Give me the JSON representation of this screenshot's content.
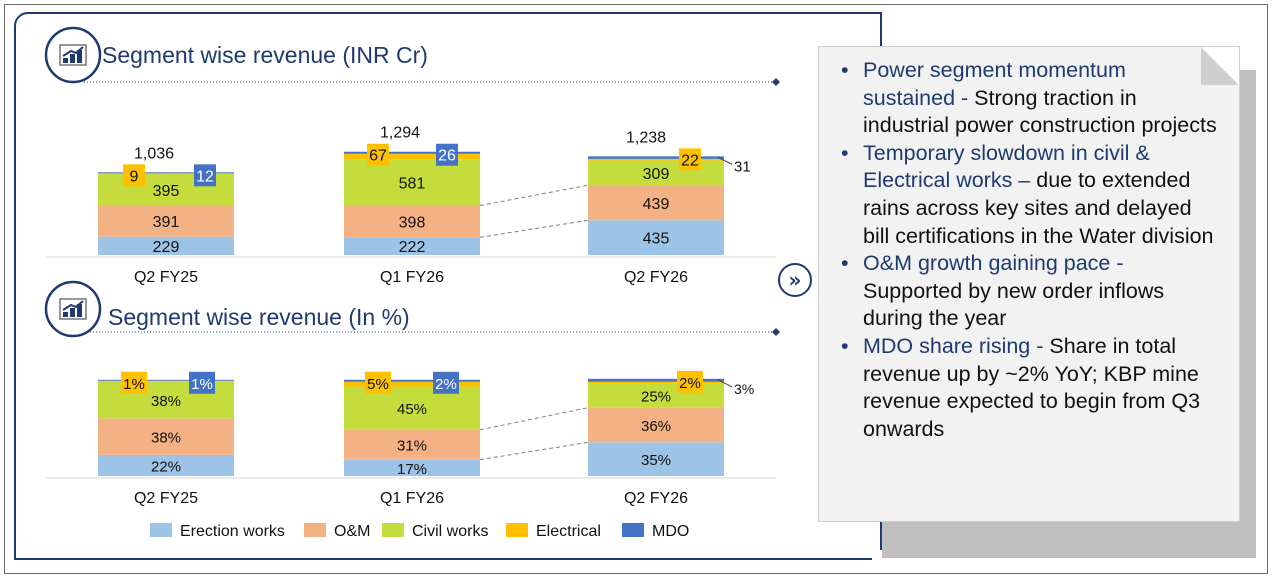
{
  "chart_data": [
    {
      "type": "bar",
      "stacked": true,
      "title": "Segment wise revenue (INR Cr)",
      "categories": [
        "Q2 FY25",
        "Q1 FY26",
        "Q2 FY26"
      ],
      "totals": [
        "1,036",
        "1,294",
        "1,238"
      ],
      "series": [
        {
          "name": "Erection works",
          "values": [
            229,
            222,
            435
          ],
          "labels": [
            "229",
            "222",
            "435"
          ]
        },
        {
          "name": "O&M",
          "values": [
            391,
            398,
            439
          ],
          "labels": [
            "391",
            "398",
            "439"
          ]
        },
        {
          "name": "Civil works",
          "values": [
            395,
            581,
            309
          ],
          "labels": [
            "395",
            "581",
            "309"
          ]
        },
        {
          "name": "Electrical",
          "values": [
            9,
            67,
            22
          ],
          "labels": [
            "9",
            "67",
            "22"
          ]
        },
        {
          "name": "MDO",
          "values": [
            12,
            26,
            31
          ],
          "labels": [
            "12",
            "26",
            "31"
          ]
        }
      ]
    },
    {
      "type": "bar",
      "stacked": true,
      "title": "Segment wise revenue (In %)",
      "categories": [
        "Q2 FY25",
        "Q1 FY26",
        "Q2 FY26"
      ],
      "series": [
        {
          "name": "Erection works",
          "values": [
            22,
            17,
            35
          ],
          "labels": [
            "22%",
            "17%",
            "35%"
          ]
        },
        {
          "name": "O&M",
          "values": [
            38,
            31,
            36
          ],
          "labels": [
            "38%",
            "31%",
            "36%"
          ]
        },
        {
          "name": "Civil works",
          "values": [
            38,
            45,
            25
          ],
          "labels": [
            "38%",
            "45%",
            "25%"
          ]
        },
        {
          "name": "Electrical",
          "values": [
            1,
            5,
            2
          ],
          "labels": [
            "1%",
            "5%",
            "2%"
          ]
        },
        {
          "name": "MDO",
          "values": [
            1,
            2,
            3
          ],
          "labels": [
            "1%",
            "2%",
            "3%"
          ]
        }
      ]
    }
  ],
  "legend": [
    "Erection works",
    "O&M",
    "Civil works",
    "Electrical",
    "MDO"
  ],
  "colors": {
    "Erection works": "#9dc3e6",
    "O&M": "#f4b183",
    "Civil works": "#c5dd3c",
    "Electrical": "#ffc000",
    "MDO": "#4472c4",
    "accent": "#1f3a6e"
  },
  "icons": {
    "chart": "growth-chart-icon",
    "arrow": "double-chevron-right-icon"
  },
  "notes": [
    {
      "head": "Power segment momentum sustained -",
      "body": " Strong traction in industrial power construction projects"
    },
    {
      "head": "Temporary slowdown in civil & Electrical works –",
      "body": " due to extended rains across key sites and delayed bill certifications in the Water division"
    },
    {
      "head": "O&M growth gaining pace -",
      "body": " Supported by new order inflows during the year"
    },
    {
      "head": "MDO share rising -",
      "body": " Share in total revenue up by ~2% YoY; KBP mine revenue expected to begin from Q3 onwards"
    }
  ],
  "arrow_glyph": "»"
}
